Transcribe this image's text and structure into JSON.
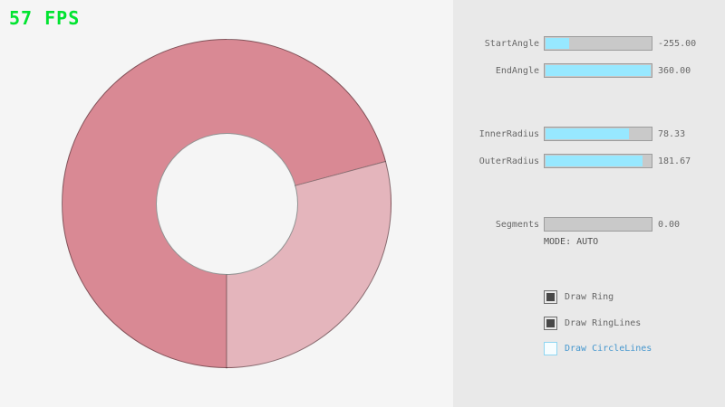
{
  "fps": {
    "label": "57 FPS"
  },
  "panel": {
    "sliders": [
      {
        "label": "StartAngle",
        "value": "-255.00",
        "fill_pct": 21.7
      },
      {
        "label": "EndAngle",
        "value": "360.00",
        "fill_pct": 100
      },
      {
        "label": "InnerRadius",
        "value": "78.33",
        "fill_pct": 78.3
      },
      {
        "label": "OuterRadius",
        "value": "181.67",
        "fill_pct": 90.8
      },
      {
        "label": "Segments",
        "value": "0.00",
        "fill_pct": 0
      }
    ],
    "mode_text": "MODE: AUTO",
    "checkboxes": [
      {
        "label": "Draw Ring",
        "checked": true
      },
      {
        "label": "Draw RingLines",
        "checked": true
      },
      {
        "label": "Draw CircleLines",
        "checked": false
      }
    ]
  },
  "ring": {
    "dark_sweep_deg": 255,
    "light_sweep_deg": 105
  },
  "colors": {
    "canvas_bg": "#f5f5f5",
    "panel_bg": "#e9e9e9",
    "fps_green": "#00e430",
    "ring_dark": "#d98994",
    "ring_light": "#e4b5bc",
    "ring_line": "rgba(0,0,0,0.4)",
    "slider_bg": "#c9c9c9",
    "slider_border": "#9c9c9c",
    "slider_fill": "#97e8ff",
    "text_gray": "#686868",
    "text_dark": "#525252",
    "blue_text": "#4697ce",
    "blue_border": "#8fd6f2",
    "check_border": "#6e6e6e",
    "check_fill": "#484848"
  }
}
